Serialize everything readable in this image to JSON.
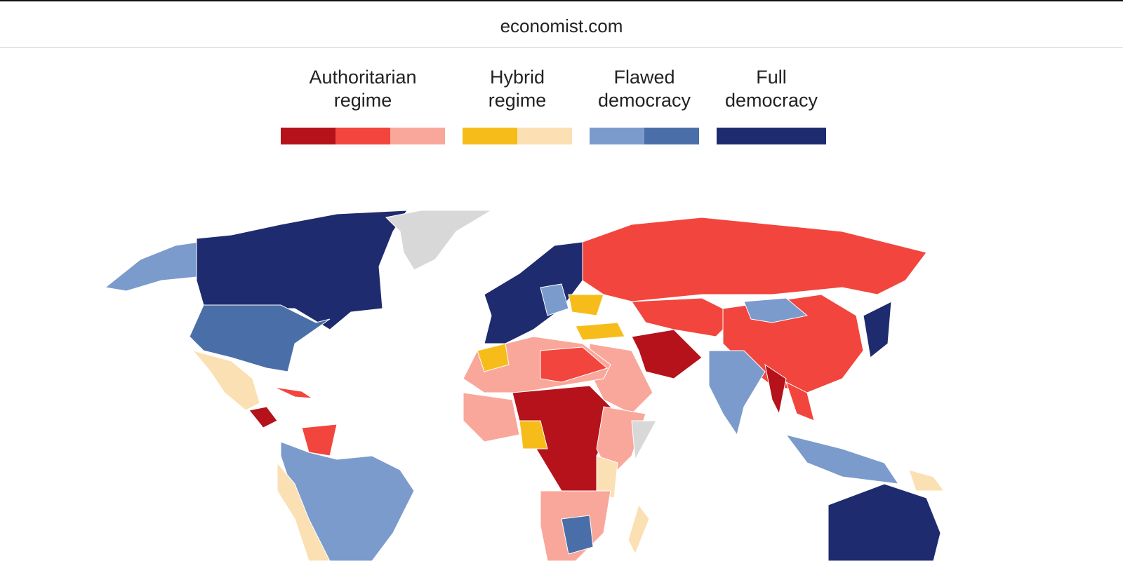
{
  "header": {
    "site": "economist.com"
  },
  "legend": [
    {
      "label": "Authoritarian regime",
      "colors": [
        "#b5121b",
        "#f2453d",
        "#f9a79b"
      ]
    },
    {
      "label": "Hybrid regime",
      "colors": [
        "#f6bd1a",
        "#fbe0b3"
      ]
    },
    {
      "label": "Flawed democracy",
      "colors": [
        "#7b9bcc",
        "#4a6fa8"
      ]
    },
    {
      "label": "Full democracy",
      "colors": [
        "#1e2b6f"
      ]
    }
  ]
}
